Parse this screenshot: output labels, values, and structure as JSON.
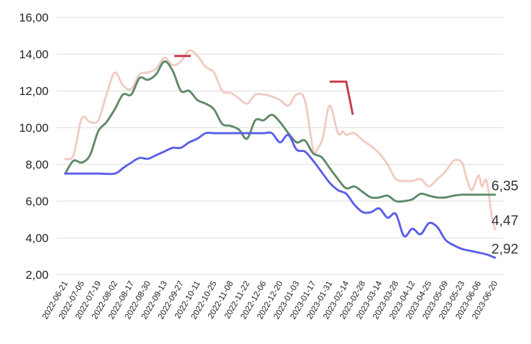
{
  "chart_data": {
    "type": "line",
    "title": "",
    "xlabel": "",
    "ylabel": "",
    "ylim": [
      2,
      16
    ],
    "yticks": [
      "2,00",
      "4,00",
      "6,00",
      "8,00",
      "10,00",
      "12,00",
      "14,00",
      "16,00"
    ],
    "grid": "horizontal",
    "xticks": [
      "2022-06-21",
      "2022-07-05",
      "2022-07-19",
      "2022-08-02",
      "2022-08-17",
      "2022-08-30",
      "2022-09-13",
      "2022-09-27",
      "2022-10-11",
      "2022-10-25",
      "2022-11-08",
      "2022-11-22",
      "2022-12-06",
      "2022-12-20",
      "2023-01-03",
      "2023-01-17",
      "2023-01-31",
      "2023-02-14",
      "2023-02-28",
      "2023-03-14",
      "2023-03-28",
      "2023-04-12",
      "2023-04-25",
      "2023-05-09",
      "2023-05-23",
      "2023-06-06",
      "2023-06-20"
    ],
    "series": [
      {
        "color": "#f0cbc3",
        "end_label": "4,47",
        "x": [
          0,
          0.5,
          1,
          1.5,
          2,
          2.5,
          3,
          3.5,
          4,
          4.5,
          5,
          5.5,
          6,
          6.5,
          7,
          7.5,
          8,
          8.5,
          9,
          9.5,
          10,
          10.5,
          11,
          11.5,
          12,
          12.5,
          13,
          13.5,
          14,
          14.5,
          15,
          15.3,
          15.6,
          16,
          16.5,
          16.8,
          17,
          17.5,
          18,
          18.5,
          19,
          19.5,
          20,
          20.5,
          21,
          21.5,
          22,
          22.5,
          23,
          23.5,
          24,
          24.3,
          24.6,
          25,
          25.2,
          25.5,
          25.8,
          26
        ],
        "y": [
          8.3,
          8.5,
          10.5,
          10.3,
          10.4,
          11.8,
          13.0,
          12.3,
          12.1,
          12.9,
          13.0,
          13.2,
          13.8,
          13.4,
          13.6,
          14.2,
          13.9,
          13.3,
          13.0,
          12.0,
          11.9,
          11.6,
          11.3,
          11.8,
          11.8,
          11.7,
          11.5,
          11.2,
          11.8,
          11.5,
          8.8,
          8.9,
          9.5,
          11.2,
          9.7,
          9.8,
          9.6,
          9.7,
          9.3,
          9.0,
          8.6,
          8.0,
          7.2,
          7.1,
          7.1,
          7.2,
          6.8,
          7.2,
          7.6,
          8.2,
          8.1,
          7.2,
          6.6,
          7.4,
          6.8,
          7.1,
          5.2,
          4.47
        ]
      },
      {
        "color": "#5e8a69",
        "end_label": "6,35",
        "x": [
          0,
          0.5,
          1,
          1.5,
          2,
          2.5,
          3,
          3.5,
          4,
          4.5,
          5,
          5.5,
          6,
          6.5,
          7,
          7.5,
          8,
          8.5,
          9,
          9.5,
          10,
          10.5,
          11,
          11.5,
          12,
          12.5,
          13,
          13.5,
          14,
          14.5,
          15,
          15.5,
          16,
          16.5,
          17,
          17.5,
          18,
          18.5,
          19,
          19.5,
          20,
          20.5,
          21,
          21.5,
          22,
          22.5,
          23,
          23.5,
          24,
          24.5,
          25,
          25.5,
          26
        ],
        "y": [
          7.5,
          8.2,
          8.1,
          8.5,
          9.8,
          10.3,
          11.0,
          11.8,
          11.8,
          12.7,
          12.6,
          12.9,
          13.6,
          13.1,
          12.0,
          12.0,
          11.5,
          11.3,
          11.0,
          10.2,
          10.1,
          9.9,
          9.4,
          10.4,
          10.4,
          10.7,
          10.3,
          9.7,
          9.2,
          9.3,
          8.6,
          8.4,
          7.8,
          7.2,
          6.7,
          6.8,
          6.5,
          6.2,
          6.2,
          6.3,
          6.0,
          6.0,
          6.1,
          6.4,
          6.3,
          6.2,
          6.2,
          6.3,
          6.35,
          6.35,
          6.35,
          6.35,
          6.35
        ]
      },
      {
        "color": "#5b5ee8",
        "end_label": "2,92",
        "x": [
          0,
          1,
          2,
          3,
          3.5,
          4,
          4.5,
          5,
          5.5,
          6,
          6.5,
          7,
          7.5,
          8,
          8.5,
          9,
          10,
          11,
          12,
          12.5,
          13,
          13.5,
          14,
          14.5,
          15,
          15.5,
          16,
          16.5,
          17,
          17.5,
          18,
          18.5,
          19,
          19.5,
          20,
          20.5,
          21,
          21.5,
          22,
          22.5,
          23,
          23.5,
          24,
          24.5,
          25,
          25.5,
          26
        ],
        "y": [
          7.5,
          7.5,
          7.5,
          7.5,
          7.8,
          8.1,
          8.35,
          8.3,
          8.5,
          8.7,
          8.9,
          8.9,
          9.2,
          9.4,
          9.7,
          9.7,
          9.7,
          9.7,
          9.7,
          9.7,
          9.2,
          9.6,
          8.8,
          8.7,
          8.2,
          7.6,
          7.0,
          6.6,
          6.4,
          5.8,
          5.4,
          5.4,
          5.6,
          5.1,
          5.3,
          4.1,
          4.5,
          4.2,
          4.8,
          4.6,
          3.9,
          3.6,
          3.4,
          3.3,
          3.2,
          3.1,
          2.92
        ]
      }
    ],
    "annotations": [
      {
        "type": "dash",
        "color": "#c8374a",
        "points": [
          [
            6.6,
            13.9
          ],
          [
            7.6,
            13.9
          ]
        ]
      },
      {
        "type": "step",
        "color": "#c8374a",
        "points": [
          [
            16.0,
            12.5
          ],
          [
            17.0,
            12.5
          ],
          [
            17.4,
            10.7
          ]
        ]
      }
    ]
  }
}
